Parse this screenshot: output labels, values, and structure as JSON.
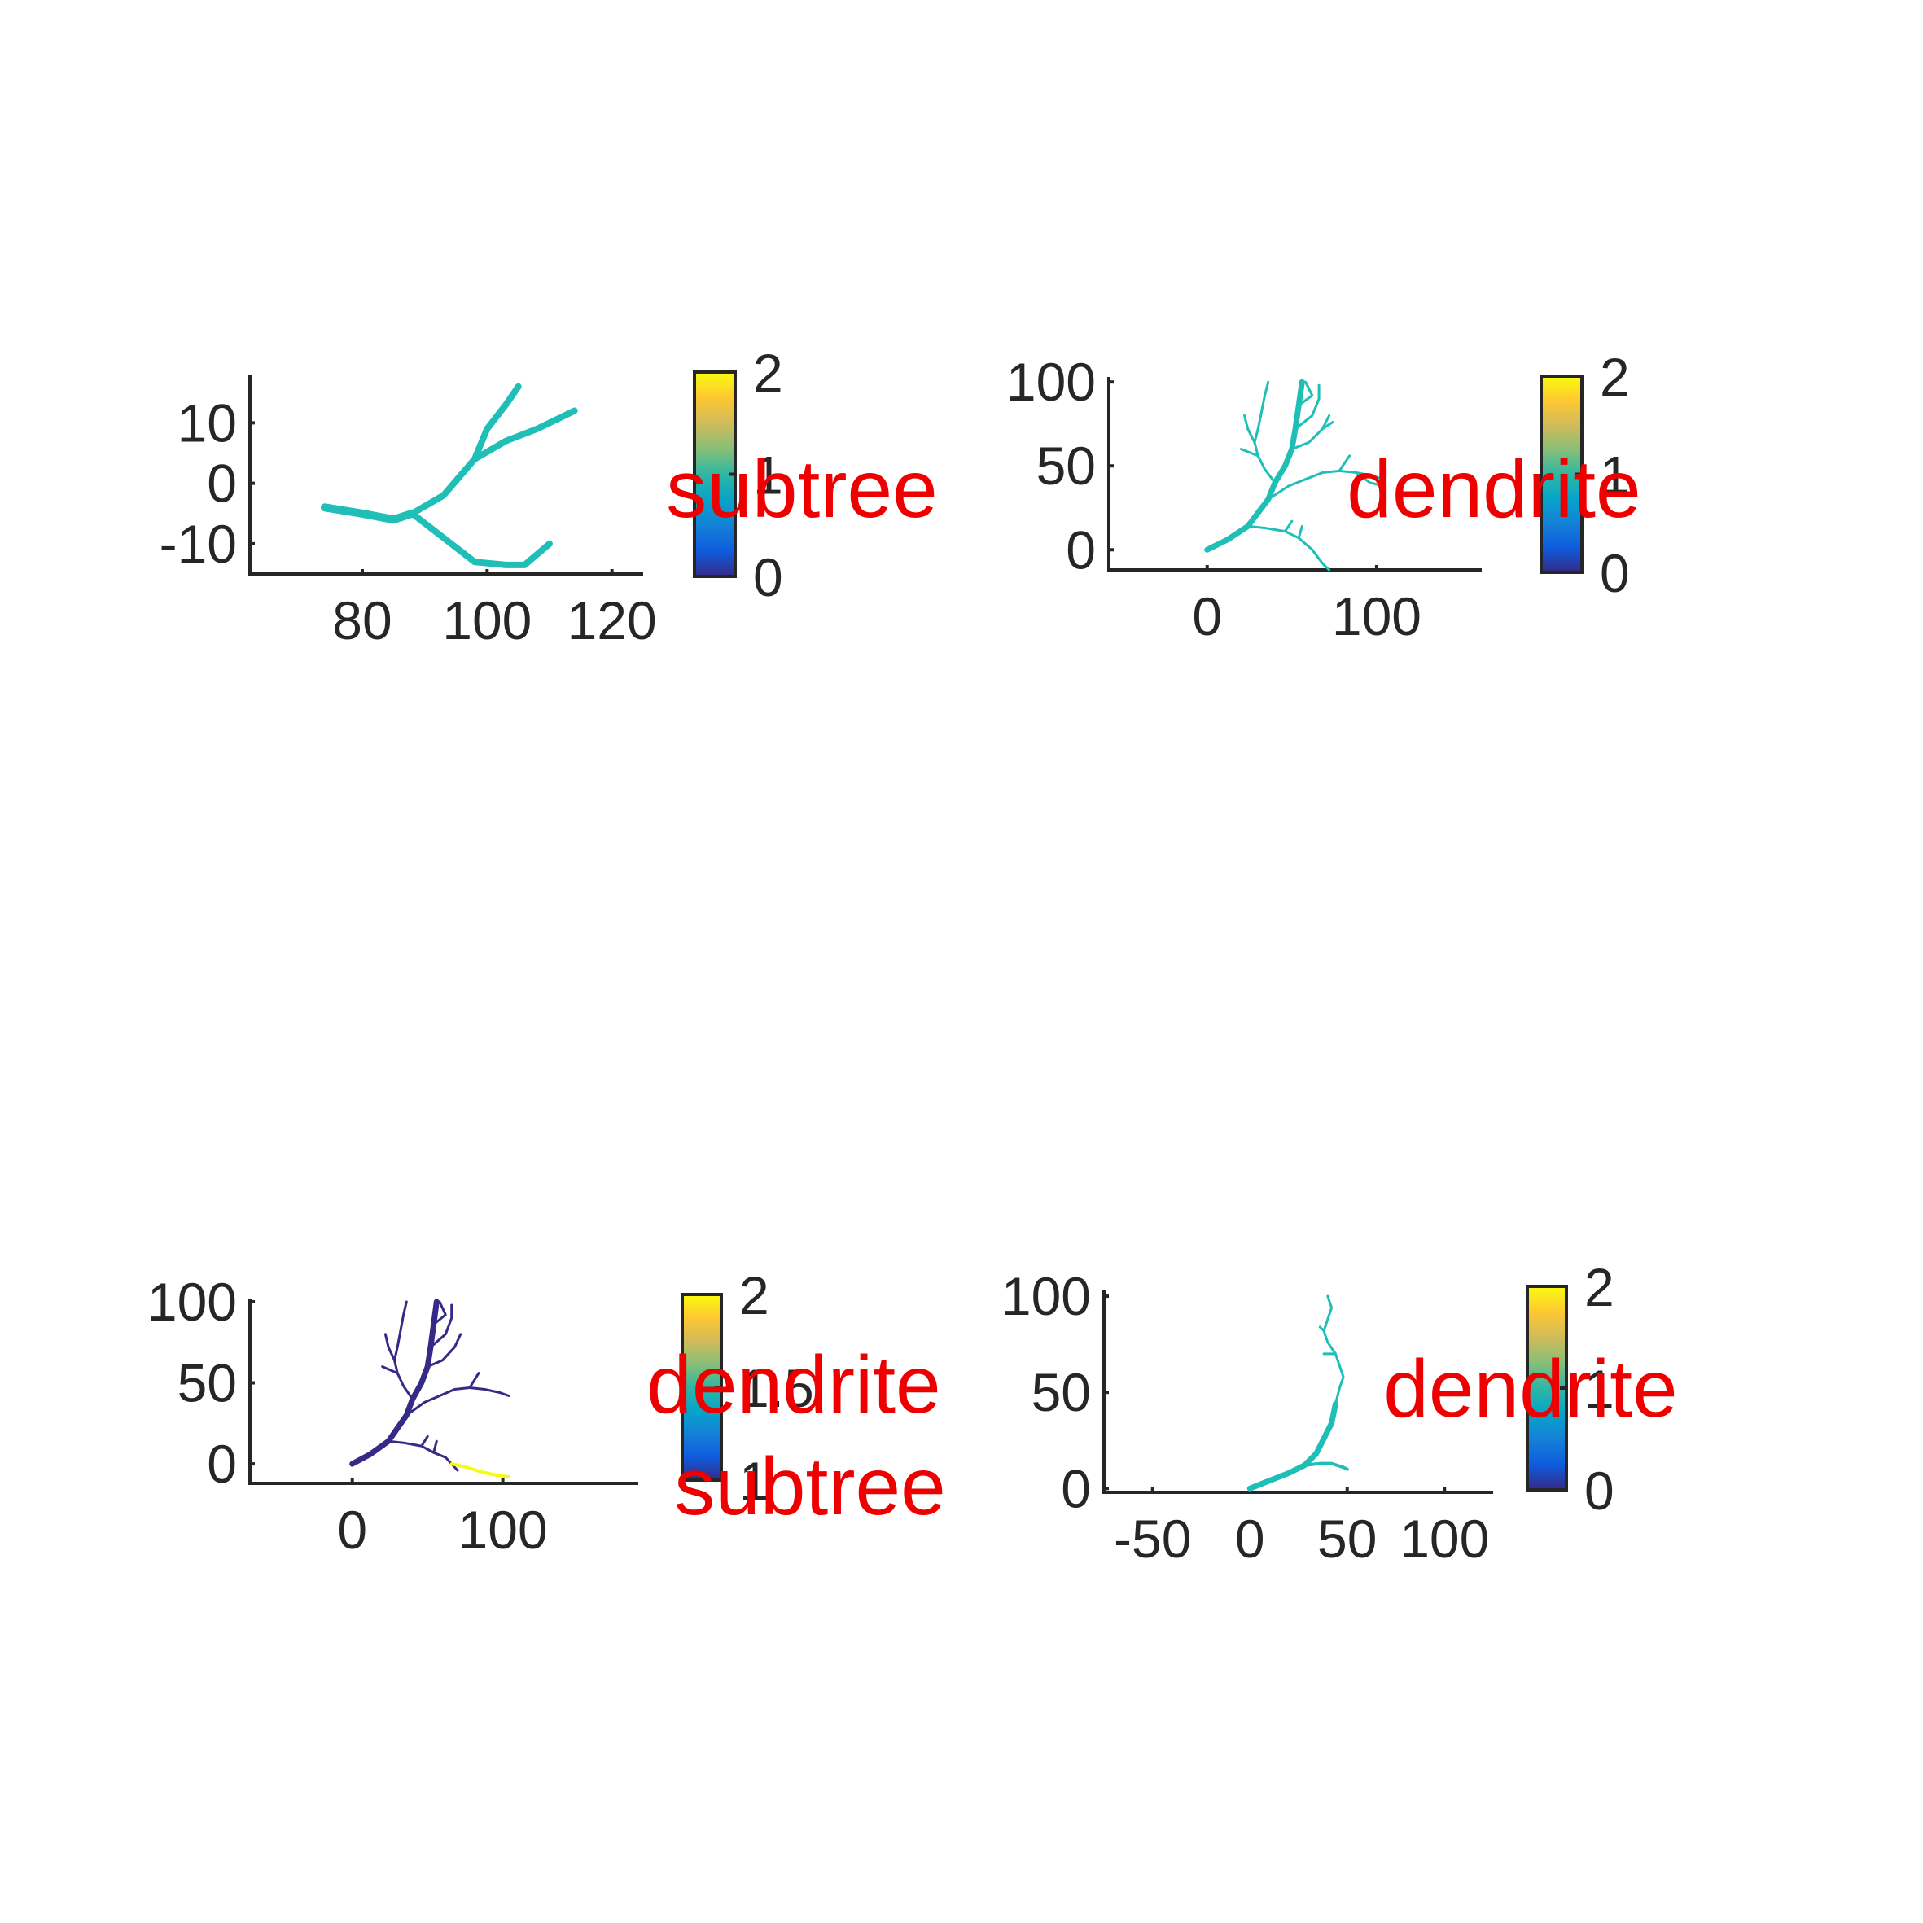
{
  "colors": {
    "tree": "#1fbfb8",
    "tree_low": "#352a87",
    "tree_high": "#f9fb0e",
    "label": "#ee0000",
    "axis": "#262626",
    "colormap": [
      "#352a87",
      "#0f5cdd",
      "#1481d6",
      "#06a4ca",
      "#2eb7a4",
      "#87bf77",
      "#d1bb59",
      "#fec832",
      "#f9fb0e"
    ]
  },
  "chart_data": [
    {
      "type": "line",
      "subplot": "top-left",
      "label": "subtree",
      "xlim": [
        62,
        125
      ],
      "ylim": [
        -15,
        18
      ],
      "xticks": [
        80,
        100,
        120
      ],
      "xtick_labels": [
        "80",
        "100",
        "120"
      ],
      "yticks": [
        -10,
        0,
        10
      ],
      "ytick_labels": [
        "-10",
        "0",
        "10"
      ],
      "colorbar": {
        "clim": [
          0,
          2
        ],
        "ticks": [
          0,
          1,
          2
        ],
        "tick_labels": [
          "0",
          "1",
          "2"
        ]
      },
      "segments": [
        {
          "value": 1,
          "width": 10,
          "points": [
            [
              74,
              -4
            ],
            [
              80,
              -5
            ],
            [
              85,
              -6
            ],
            [
              88,
              -5
            ]
          ]
        },
        {
          "value": 1,
          "width": 8,
          "points": [
            [
              88,
              -5
            ],
            [
              93,
              -2
            ],
            [
              98,
              4
            ],
            [
              103,
              7
            ],
            [
              108,
              9
            ],
            [
              114,
              12
            ]
          ]
        },
        {
          "value": 1,
          "width": 8,
          "points": [
            [
              98,
              4
            ],
            [
              100,
              9
            ],
            [
              103,
              13
            ],
            [
              105,
              16
            ]
          ]
        },
        {
          "value": 1,
          "width": 8,
          "points": [
            [
              88,
              -5
            ],
            [
              93,
              -9
            ],
            [
              98,
              -13
            ],
            [
              103,
              -13.5
            ],
            [
              106,
              -13.5
            ],
            [
              110,
              -10
            ]
          ]
        }
      ]
    },
    {
      "type": "line",
      "subplot": "top-right",
      "label": "dendrite",
      "xlim": [
        -58,
        162
      ],
      "ylim": [
        -12,
        103
      ],
      "xticks": [
        0,
        100
      ],
      "xtick_labels": [
        "0",
        "100"
      ],
      "yticks": [
        0,
        50,
        100
      ],
      "ytick_labels": [
        "0",
        "50",
        "100"
      ],
      "colorbar": {
        "clim": [
          0,
          2
        ],
        "ticks": [
          0,
          1,
          2
        ],
        "tick_labels": [
          "0",
          "1",
          "2"
        ]
      },
      "segments": [
        {
          "value": 1,
          "width": 7,
          "points": [
            [
              0,
              0
            ],
            [
              12,
              6
            ],
            [
              24,
              14
            ],
            [
              30,
              22
            ],
            [
              36,
              30
            ],
            [
              40,
              40
            ],
            [
              46,
              50
            ],
            [
              50,
              60
            ],
            [
              52,
              72
            ],
            [
              54,
              86
            ],
            [
              56,
              100
            ]
          ]
        },
        {
          "value": 1,
          "width": 3,
          "points": [
            [
              24,
              14
            ],
            [
              34,
              13
            ],
            [
              46,
              11
            ],
            [
              54,
              7
            ],
            [
              62,
              0
            ],
            [
              68,
              -8
            ],
            [
              72,
              -12
            ]
          ]
        },
        {
          "value": 1,
          "width": 3,
          "points": [
            [
              46,
              11
            ],
            [
              50,
              17
            ]
          ]
        },
        {
          "value": 1,
          "width": 3,
          "points": [
            [
              54,
              7
            ],
            [
              56,
              14
            ]
          ]
        },
        {
          "value": 1,
          "width": 3,
          "points": [
            [
              36,
              30
            ],
            [
              48,
              38
            ],
            [
              58,
              42
            ],
            [
              68,
              46
            ],
            [
              78,
              47
            ],
            [
              88,
              46
            ],
            [
              98,
              44
            ],
            [
              104,
              42
            ]
          ]
        },
        {
          "value": 1,
          "width": 3,
          "points": [
            [
              88,
              46
            ],
            [
              96,
              40
            ],
            [
              104,
              38
            ]
          ]
        },
        {
          "value": 1,
          "width": 3,
          "points": [
            [
              78,
              47
            ],
            [
              84,
              56
            ]
          ]
        },
        {
          "value": 1,
          "width": 3,
          "points": [
            [
              40,
              40
            ],
            [
              34,
              48
            ],
            [
              30,
              56
            ],
            [
              28,
              64
            ],
            [
              30,
              72
            ],
            [
              32,
              82
            ],
            [
              34,
              92
            ],
            [
              36,
              100
            ]
          ]
        },
        {
          "value": 1,
          "width": 3,
          "points": [
            [
              28,
              64
            ],
            [
              24,
              72
            ],
            [
              22,
              80
            ]
          ]
        },
        {
          "value": 1,
          "width": 3,
          "points": [
            [
              50,
              60
            ],
            [
              60,
              64
            ],
            [
              68,
              72
            ],
            [
              72,
              80
            ]
          ]
        },
        {
          "value": 1,
          "width": 3,
          "points": [
            [
              68,
              72
            ],
            [
              74,
              76
            ]
          ]
        },
        {
          "value": 1,
          "width": 3,
          "points": [
            [
              52,
              72
            ],
            [
              62,
              80
            ],
            [
              66,
              90
            ],
            [
              66,
              98
            ]
          ]
        },
        {
          "value": 1,
          "width": 3,
          "points": [
            [
              54,
              86
            ],
            [
              62,
              92
            ],
            [
              58,
              100
            ]
          ]
        },
        {
          "value": 1,
          "width": 3,
          "points": [
            [
              30,
              56
            ],
            [
              20,
              60
            ]
          ]
        }
      ]
    },
    {
      "type": "line",
      "subplot": "bottom-left",
      "label": "dendrite",
      "label2": "subtree",
      "xlim": [
        -68,
        190
      ],
      "ylim": [
        -12,
        102
      ],
      "xticks": [
        0,
        100
      ],
      "xtick_labels": [
        "0",
        "100"
      ],
      "yticks": [
        0,
        50,
        100
      ],
      "ytick_labels": [
        "0",
        "50",
        "100"
      ],
      "colorbar": {
        "clim": [
          1,
          2
        ],
        "ticks": [
          1,
          1.5,
          2
        ],
        "tick_labels": [
          "1",
          "1.5",
          "2"
        ]
      },
      "segments": [
        {
          "value": 1,
          "width": 7,
          "points": [
            [
              0,
              0
            ],
            [
              12,
              6
            ],
            [
              24,
              14
            ],
            [
              30,
              22
            ],
            [
              36,
              30
            ],
            [
              40,
              40
            ],
            [
              46,
              50
            ],
            [
              50,
              60
            ],
            [
              52,
              72
            ],
            [
              54,
              86
            ],
            [
              56,
              100
            ]
          ]
        },
        {
          "value": 1,
          "width": 3,
          "points": [
            [
              24,
              14
            ],
            [
              34,
              13
            ],
            [
              46,
              11
            ],
            [
              54,
              7
            ],
            [
              62,
              4
            ],
            [
              66,
              0
            ],
            [
              70,
              -4
            ]
          ]
        },
        {
          "value": 1,
          "width": 3,
          "points": [
            [
              46,
              11
            ],
            [
              50,
              17
            ]
          ]
        },
        {
          "value": 1,
          "width": 3,
          "points": [
            [
              54,
              7
            ],
            [
              56,
              14
            ]
          ]
        },
        {
          "value": 1,
          "width": 3,
          "points": [
            [
              36,
              30
            ],
            [
              48,
              38
            ],
            [
              58,
              42
            ],
            [
              68,
              46
            ],
            [
              78,
              47
            ],
            [
              88,
              46
            ],
            [
              98,
              44
            ],
            [
              104,
              42
            ]
          ]
        },
        {
          "value": 1,
          "width": 3,
          "points": [
            [
              78,
              47
            ],
            [
              84,
              56
            ]
          ]
        },
        {
          "value": 1,
          "width": 3,
          "points": [
            [
              40,
              40
            ],
            [
              34,
              48
            ],
            [
              30,
              56
            ],
            [
              28,
              64
            ],
            [
              30,
              72
            ],
            [
              32,
              82
            ],
            [
              34,
              92
            ],
            [
              36,
              100
            ]
          ]
        },
        {
          "value": 1,
          "width": 3,
          "points": [
            [
              28,
              64
            ],
            [
              24,
              72
            ],
            [
              22,
              80
            ]
          ]
        },
        {
          "value": 1,
          "width": 3,
          "points": [
            [
              50,
              60
            ],
            [
              60,
              64
            ],
            [
              68,
              72
            ],
            [
              72,
              80
            ]
          ]
        },
        {
          "value": 1,
          "width": 3,
          "points": [
            [
              52,
              72
            ],
            [
              62,
              80
            ],
            [
              66,
              90
            ],
            [
              66,
              98
            ]
          ]
        },
        {
          "value": 1,
          "width": 3,
          "points": [
            [
              54,
              86
            ],
            [
              62,
              92
            ],
            [
              58,
              100
            ]
          ]
        },
        {
          "value": 1,
          "width": 3,
          "points": [
            [
              30,
              56
            ],
            [
              20,
              60
            ]
          ]
        },
        {
          "value": 2,
          "width": 4,
          "points": [
            [
              66,
              0
            ],
            [
              76,
              -2
            ],
            [
              86,
              -5
            ],
            [
              96,
              -7
            ],
            [
              104,
              -8
            ]
          ]
        }
      ]
    },
    {
      "type": "line",
      "subplot": "bottom-right",
      "label": "dendrite",
      "xlim": [
        -75,
        125
      ],
      "ylim": [
        -2,
        103
      ],
      "xticks": [
        -50,
        0,
        50,
        100
      ],
      "xtick_labels": [
        "-50",
        "0",
        "50",
        "100"
      ],
      "yticks": [
        0,
        50,
        100
      ],
      "ytick_labels": [
        "0",
        "50",
        "100"
      ],
      "colorbar": {
        "clim": [
          0,
          2
        ],
        "ticks": [
          0,
          1,
          2
        ],
        "tick_labels": [
          "0",
          "1",
          "2"
        ]
      },
      "segments": [
        {
          "value": 1,
          "width": 7,
          "points": [
            [
              0,
              0
            ],
            [
              10,
              4
            ],
            [
              20,
              8
            ],
            [
              28,
              12
            ],
            [
              34,
              18
            ],
            [
              38,
              26
            ],
            [
              42,
              34
            ],
            [
              44,
              44
            ]
          ]
        },
        {
          "value": 1,
          "width": 4,
          "points": [
            [
              28,
              12
            ],
            [
              36,
              13
            ],
            [
              42,
              13
            ],
            [
              48,
              11
            ],
            [
              50,
              10
            ]
          ]
        },
        {
          "value": 1,
          "width": 3,
          "points": [
            [
              44,
              44
            ],
            [
              46,
              52
            ],
            [
              48,
              58
            ],
            [
              46,
              64
            ],
            [
              44,
              70
            ],
            [
              40,
              76
            ],
            [
              38,
              82
            ],
            [
              40,
              88
            ],
            [
              42,
              94
            ],
            [
              40,
              100
            ]
          ]
        },
        {
          "value": 1,
          "width": 3,
          "points": [
            [
              44,
              70
            ],
            [
              38,
              70
            ]
          ]
        },
        {
          "value": 1,
          "width": 3,
          "points": [
            [
              38,
              82
            ],
            [
              36,
              84
            ]
          ]
        }
      ]
    }
  ]
}
